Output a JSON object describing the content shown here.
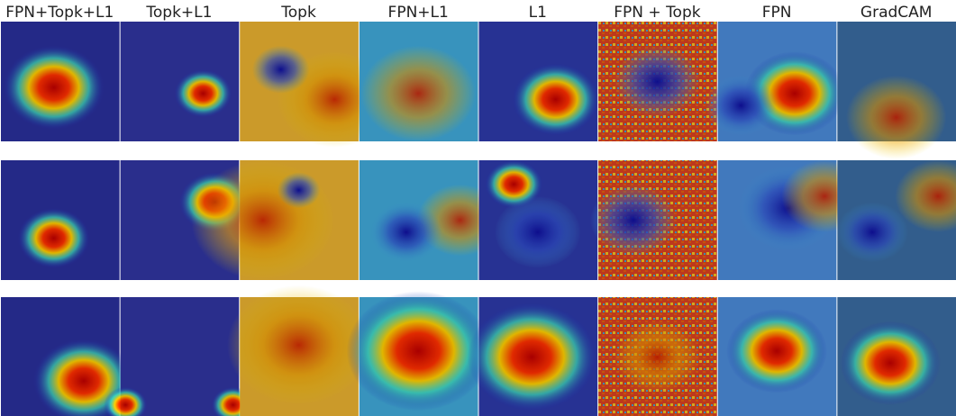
{
  "columns": [
    "FPN+Topk+L1",
    "Topk+L1",
    "Topk",
    "FPN+L1",
    "L1",
    "FPN + Topk",
    "FPN",
    "GradCAM"
  ]
}
